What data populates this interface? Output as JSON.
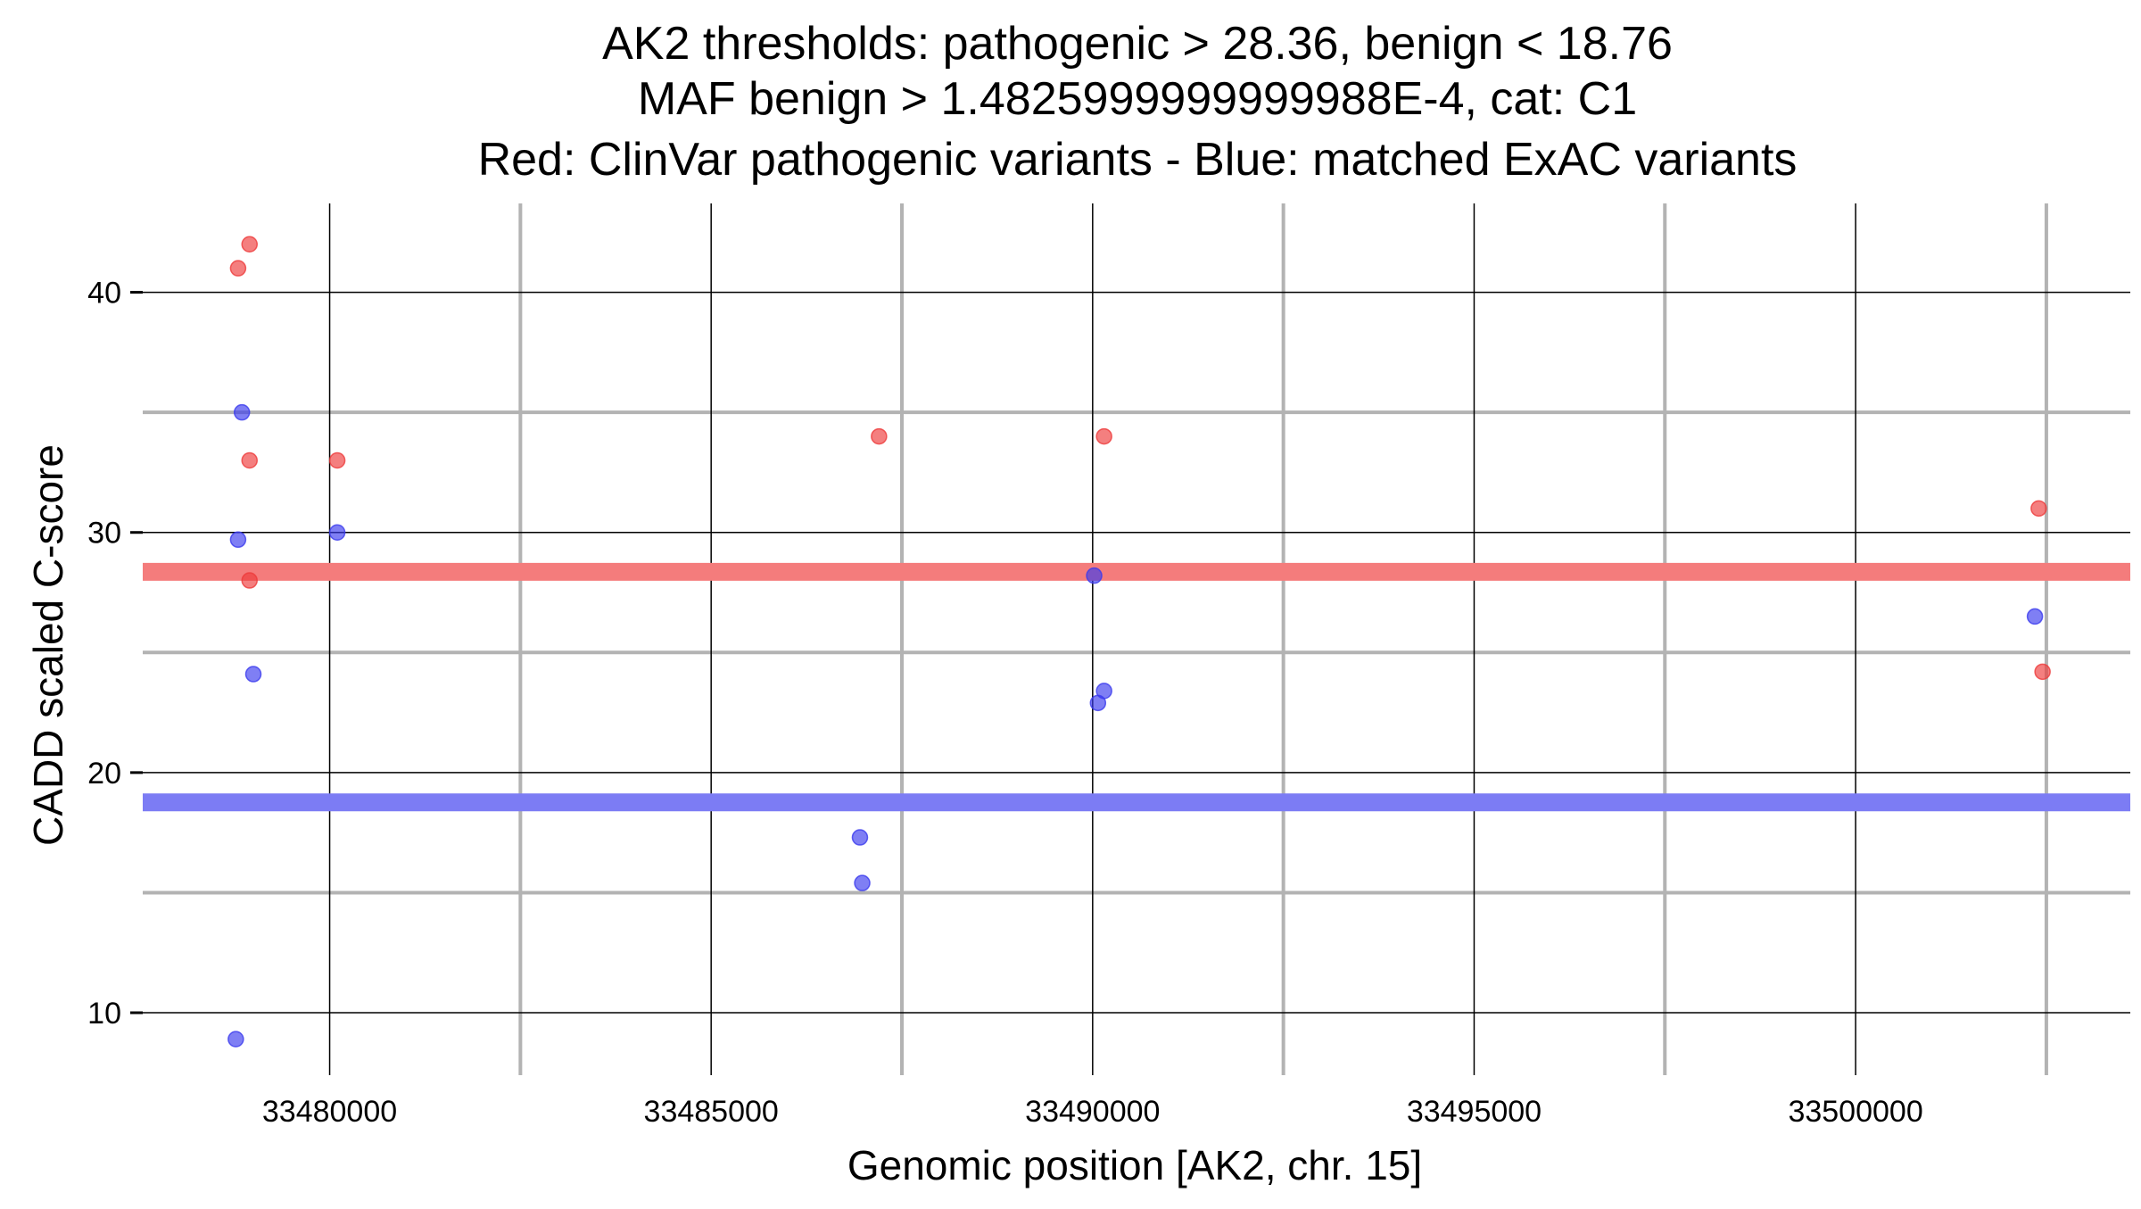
{
  "chart_data": {
    "type": "scatter",
    "title_lines": [
      "AK2 thresholds: pathogenic > 28.36, benign < 18.76",
      "MAF benign > 1.4825999999999988E-4, cat: C1",
      "Red: ClinVar pathogenic variants - Blue: matched ExAC variants"
    ],
    "xlabel": "Genomic position [AK2, chr. 15]",
    "ylabel": "CADD scaled C-score",
    "xlim": [
      33477550,
      33503600
    ],
    "ylim": [
      7.4,
      43.7
    ],
    "x_ticks": [
      {
        "value": 33480000,
        "label": "33480000"
      },
      {
        "value": 33485000,
        "label": "33485000"
      },
      {
        "value": 33490000,
        "label": "33490000"
      },
      {
        "value": 33495000,
        "label": "33495000"
      },
      {
        "value": 33500000,
        "label": "33500000"
      }
    ],
    "y_ticks": [
      {
        "value": 10,
        "label": "10"
      },
      {
        "value": 20,
        "label": "20"
      },
      {
        "value": 30,
        "label": "30"
      },
      {
        "value": 40,
        "label": "40"
      }
    ],
    "x_minor_grid": [
      33482500,
      33487500,
      33492500,
      33497500,
      33502500
    ],
    "y_minor_grid": [
      15,
      25,
      35
    ],
    "grid": true,
    "thresholds": [
      {
        "name": "pathogenic",
        "value": 28.36,
        "color": "#f47c7c"
      },
      {
        "name": "benign",
        "value": 18.76,
        "color": "#7c7cf4"
      }
    ],
    "series": [
      {
        "color": "#ee3b3b",
        "points": [
          {
            "x": 33478800,
            "y": 41
          },
          {
            "x": 33478950,
            "y": 42
          },
          {
            "x": 33478950,
            "y": 33
          },
          {
            "x": 33478950,
            "y": 28
          },
          {
            "x": 33480100,
            "y": 33
          },
          {
            "x": 33487200,
            "y": 34
          },
          {
            "x": 33490150,
            "y": 34
          },
          {
            "x": 33502400,
            "y": 31
          },
          {
            "x": 33502450,
            "y": 24.2
          }
        ]
      },
      {
        "color": "#3b3bee",
        "points": [
          {
            "x": 33478850,
            "y": 35
          },
          {
            "x": 33478800,
            "y": 29.7
          },
          {
            "x": 33479000,
            "y": 24.1
          },
          {
            "x": 33478770,
            "y": 8.9
          },
          {
            "x": 33480100,
            "y": 30
          },
          {
            "x": 33486950,
            "y": 17.3
          },
          {
            "x": 33486980,
            "y": 15.4
          },
          {
            "x": 33490020,
            "y": 28.2
          },
          {
            "x": 33490070,
            "y": 22.9
          },
          {
            "x": 33490150,
            "y": 23.4
          },
          {
            "x": 33502350,
            "y": 26.5
          }
        ]
      }
    ]
  }
}
